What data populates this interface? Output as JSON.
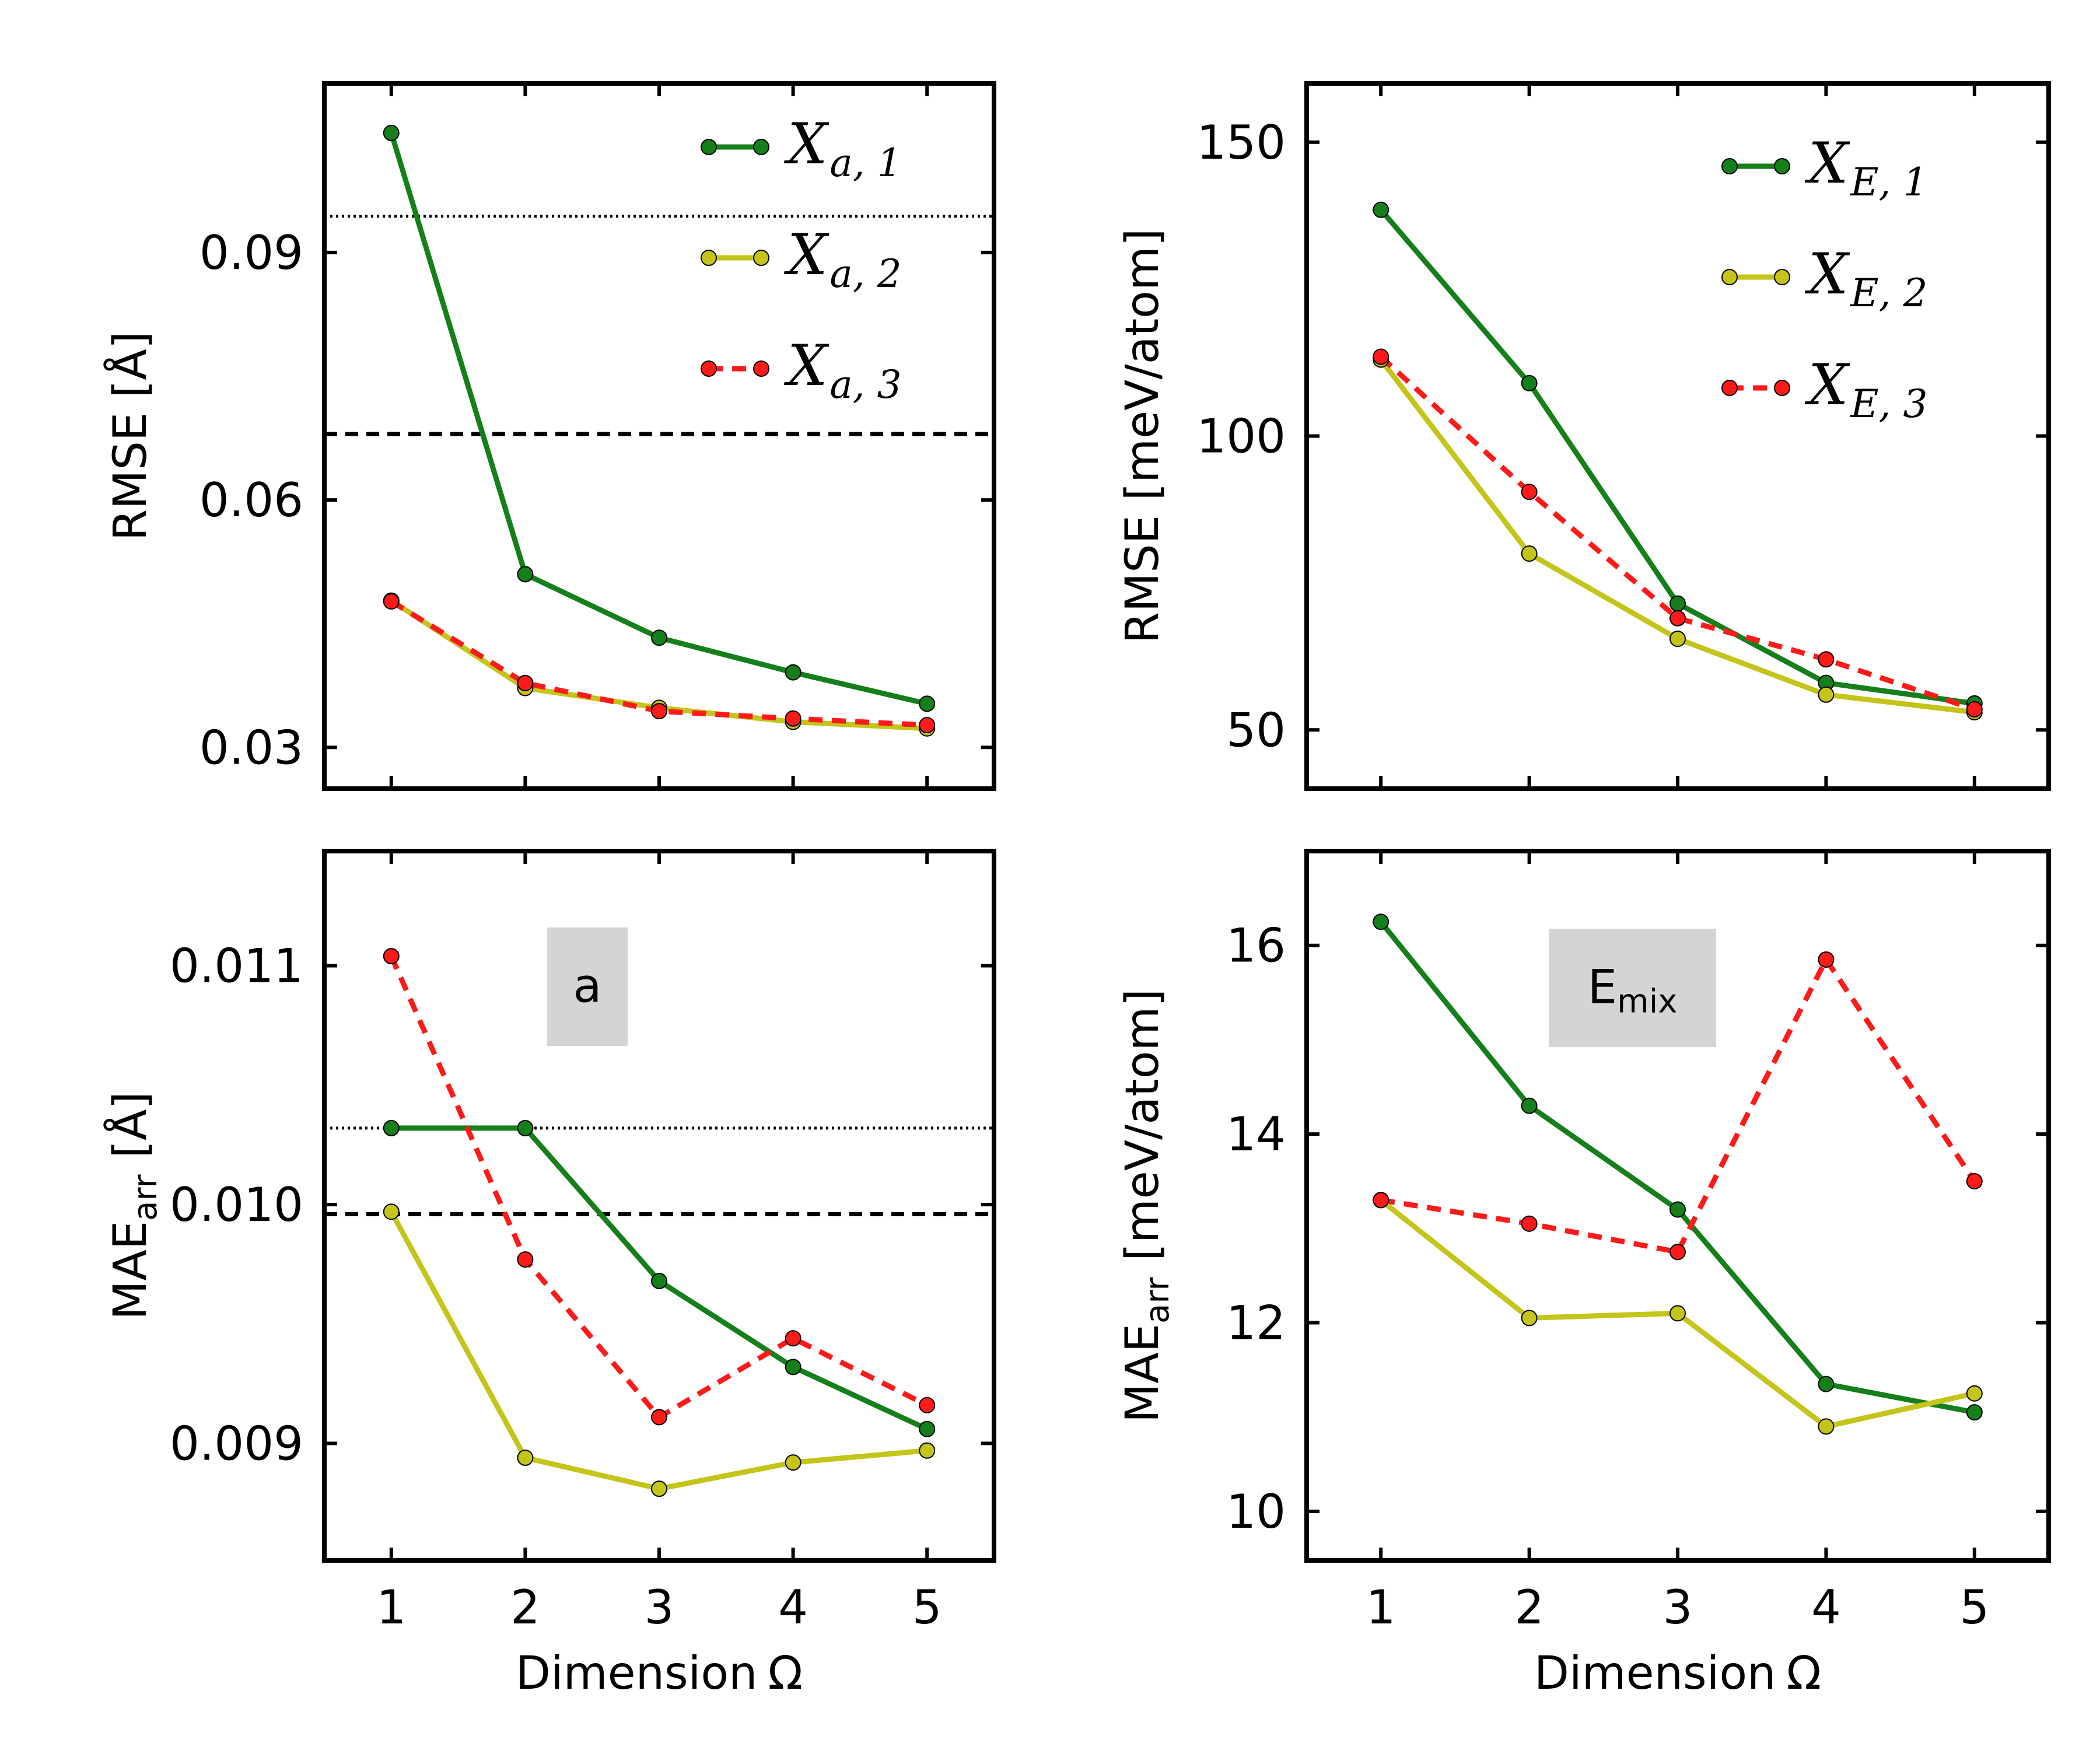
{
  "figure": {
    "xlabel": "Dimension Ω",
    "xlabel_text": "Dimension",
    "xlabel_symbol": "Ω"
  },
  "colors": {
    "green": "#157f1a",
    "olive": "#c4c41a",
    "red": "#ff1a1a",
    "badge_bg": "#d4d4d4",
    "black": "#000000"
  },
  "chart_data": [
    {
      "id": "rmse_a",
      "type": "line",
      "ylabel": "RMSE [Å]",
      "xlim": [
        0.5,
        5.5
      ],
      "ylim": [
        0.025,
        0.1105
      ],
      "xticks": [
        1,
        2,
        3,
        4,
        5
      ],
      "yticks": [
        0.03,
        0.06,
        0.09
      ],
      "ytick_labels": [
        "0.03",
        "0.06",
        "0.09"
      ],
      "x": [
        1,
        2,
        3,
        4,
        5
      ],
      "series": [
        {
          "name": "X_{a,1}",
          "base": "X",
          "sub": "a, 1",
          "color": "green",
          "dash": false,
          "values": [
            0.1045,
            0.051,
            0.0433,
            0.0391,
            0.0353
          ]
        },
        {
          "name": "X_{a,2}",
          "base": "X",
          "sub": "a, 2",
          "color": "olive",
          "dash": false,
          "values": [
            0.0478,
            0.0372,
            0.0348,
            0.0331,
            0.0323
          ]
        },
        {
          "name": "X_{a,3}",
          "base": "X",
          "sub": "a, 3",
          "color": "red",
          "dash": true,
          "values": [
            0.0477,
            0.0378,
            0.0344,
            0.0335,
            0.0327
          ]
        }
      ],
      "hlines": [
        {
          "y": 0.0944,
          "style": "dotted"
        },
        {
          "y": 0.068,
          "style": "dashed"
        }
      ],
      "legend": "top-right"
    },
    {
      "id": "rmse_e",
      "type": "line",
      "ylabel": "RMSE [meV/atom]",
      "xlim": [
        0.5,
        5.5
      ],
      "ylim": [
        40,
        160
      ],
      "xticks": [
        1,
        2,
        3,
        4,
        5
      ],
      "yticks": [
        50,
        100,
        150
      ],
      "ytick_labels": [
        "50",
        "100",
        "150"
      ],
      "x": [
        1,
        2,
        3,
        4,
        5
      ],
      "series": [
        {
          "name": "X_{E,1}",
          "base": "X",
          "sub": "E, 1",
          "color": "green",
          "dash": false,
          "values": [
            138.5,
            109.0,
            71.5,
            58.0,
            54.5
          ]
        },
        {
          "name": "X_{E,2}",
          "base": "X",
          "sub": "E, 2",
          "color": "olive",
          "dash": false,
          "values": [
            113.0,
            80.0,
            65.5,
            56.0,
            53.0
          ]
        },
        {
          "name": "X_{E,3}",
          "base": "X",
          "sub": "E, 3",
          "color": "red",
          "dash": true,
          "values": [
            113.5,
            90.5,
            69.0,
            62.0,
            53.5
          ]
        }
      ],
      "hlines": [],
      "legend": "top-right"
    },
    {
      "id": "mae_a",
      "type": "line",
      "ylabel": "MAE",
      "ylabel_sub": "arr",
      "ylabel_unit": "[Å]",
      "xlim": [
        0.5,
        5.5
      ],
      "ylim": [
        0.00851,
        0.01148
      ],
      "xticks": [
        1,
        2,
        3,
        4,
        5
      ],
      "xtick_labels": [
        "1",
        "2",
        "3",
        "4",
        "5"
      ],
      "yticks": [
        0.009,
        0.01,
        0.011
      ],
      "ytick_labels": [
        "0.009",
        "0.010",
        "0.011"
      ],
      "x": [
        1,
        2,
        3,
        4,
        5
      ],
      "series": [
        {
          "name": "X_{a,1}",
          "color": "green",
          "dash": false,
          "values": [
            0.01032,
            0.01032,
            0.00968,
            0.00932,
            0.00906
          ]
        },
        {
          "name": "X_{a,2}",
          "color": "olive",
          "dash": false,
          "values": [
            0.00997,
            0.00894,
            0.00881,
            0.00892,
            0.00897
          ]
        },
        {
          "name": "X_{a,3}",
          "color": "red",
          "dash": true,
          "values": [
            0.01104,
            0.00977,
            0.00911,
            0.00944,
            0.00916
          ]
        }
      ],
      "hlines": [
        {
          "y": 0.01032,
          "style": "dotted"
        },
        {
          "y": 0.00996,
          "style": "dashed"
        }
      ],
      "badge": "a"
    },
    {
      "id": "mae_e",
      "type": "line",
      "ylabel": "MAE",
      "ylabel_sub": "arr",
      "ylabel_unit": "[meV/atom]",
      "xlim": [
        0.5,
        5.5
      ],
      "ylim": [
        9.48,
        17.0
      ],
      "xticks": [
        1,
        2,
        3,
        4,
        5
      ],
      "xtick_labels": [
        "1",
        "2",
        "3",
        "4",
        "5"
      ],
      "yticks": [
        10,
        12,
        14,
        16
      ],
      "ytick_labels": [
        "10",
        "12",
        "14",
        "16"
      ],
      "x": [
        1,
        2,
        3,
        4,
        5
      ],
      "series": [
        {
          "name": "X_{E,1}",
          "color": "green",
          "dash": false,
          "values": [
            16.25,
            14.3,
            13.2,
            11.35,
            11.05
          ]
        },
        {
          "name": "X_{E,2}",
          "color": "olive",
          "dash": false,
          "values": [
            13.3,
            12.05,
            12.1,
            10.9,
            11.25
          ]
        },
        {
          "name": "X_{E,3}",
          "color": "red",
          "dash": true,
          "values": [
            13.3,
            13.05,
            12.75,
            15.85,
            13.5
          ]
        }
      ],
      "hlines": [],
      "badge": "E",
      "badge_sub": "mix"
    }
  ]
}
